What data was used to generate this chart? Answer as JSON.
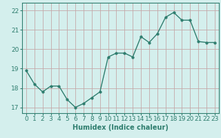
{
  "x": [
    0,
    1,
    2,
    3,
    4,
    5,
    6,
    7,
    8,
    9,
    10,
    11,
    12,
    13,
    14,
    15,
    16,
    17,
    18,
    19,
    20,
    21,
    22,
    23
  ],
  "y": [
    18.9,
    18.2,
    17.8,
    18.1,
    18.1,
    17.4,
    17.0,
    17.2,
    17.5,
    17.8,
    19.6,
    19.8,
    19.8,
    19.6,
    20.65,
    20.35,
    20.8,
    21.65,
    21.9,
    21.5,
    21.5,
    20.4,
    20.35,
    20.35
  ],
  "line_color": "#2e7d6e",
  "marker_color": "#2e7d6e",
  "bg_color": "#d4efed",
  "grid_color_v": "#c4a8a8",
  "grid_color_h": "#c4a8a8",
  "spine_color": "#2e7d6e",
  "xlabel": "Humidex (Indice chaleur)",
  "ylim": [
    16.7,
    22.4
  ],
  "xlim": [
    -0.5,
    23.5
  ],
  "yticks": [
    17,
    18,
    19,
    20,
    21,
    22
  ],
  "xticks": [
    0,
    1,
    2,
    3,
    4,
    5,
    6,
    7,
    8,
    9,
    10,
    11,
    12,
    13,
    14,
    15,
    16,
    17,
    18,
    19,
    20,
    21,
    22,
    23
  ],
  "label_fontsize": 7,
  "tick_fontsize": 6.5,
  "line_width": 1.0,
  "marker_size": 2.5
}
